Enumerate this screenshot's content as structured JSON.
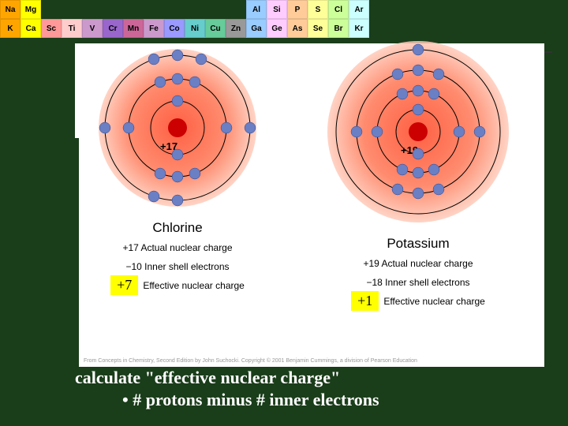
{
  "periodic": {
    "row1": [
      "Na",
      "Mg",
      "",
      "",
      "",
      "",
      "",
      "",
      "",
      "",
      "",
      "",
      "Al",
      "Si",
      "P",
      "S",
      "Cl",
      "Ar"
    ],
    "row2": [
      "K",
      "Ca",
      "Sc",
      "Ti",
      "V",
      "Cr",
      "Mn",
      "Fe",
      "Co",
      "Ni",
      "Cu",
      "Zn",
      "Ga",
      "Ge",
      "As",
      "Se",
      "Br",
      "Kr"
    ],
    "colors": [
      "#ffa500",
      "#ffff00",
      "#ff9999",
      "#ffcccc",
      "#cc99cc",
      "#9966cc",
      "#cc6699",
      "#cc99cc",
      "#9999ff",
      "#66cccc",
      "#66cc99",
      "#999999",
      "#99ccff",
      "#ffccff",
      "#ffcc99",
      "#ffff99",
      "#ccff99",
      "#ccffff"
    ]
  },
  "chlorine": {
    "name": "Chlorine",
    "nucleus_label": "+17",
    "actual": "+17  Actual nuclear charge",
    "inner": "−10  Inner shell electrons",
    "effective": "+7",
    "eff_label": "Effective nuclear charge",
    "shells": [
      {
        "r": 34,
        "electrons": [
          [
            0,
            -34
          ],
          [
            0,
            34
          ]
        ]
      },
      {
        "r": 62,
        "electrons": [
          [
            0,
            -62
          ],
          [
            -22,
            -58
          ],
          [
            22,
            -58
          ],
          [
            -62,
            0
          ],
          [
            62,
            0
          ],
          [
            0,
            62
          ],
          [
            -22,
            58
          ],
          [
            22,
            58
          ]
        ]
      },
      {
        "r": 92,
        "electrons": [
          [
            0,
            -92
          ],
          [
            -30,
            -87
          ],
          [
            30,
            -87
          ],
          [
            -92,
            0
          ],
          [
            92,
            0
          ],
          [
            0,
            92
          ],
          [
            -30,
            87
          ]
        ]
      }
    ]
  },
  "potassium": {
    "name": "Potassium",
    "nucleus_label": "+19",
    "actual": "+19  Actual nuclear charge",
    "inner": "−18  Inner shell electrons",
    "effective": "+1",
    "eff_label": "Effective nuclear charge",
    "shells": [
      {
        "r": 28,
        "electrons": [
          [
            0,
            -28
          ],
          [
            0,
            28
          ]
        ]
      },
      {
        "r": 52,
        "electrons": [
          [
            0,
            -52
          ],
          [
            -20,
            -48
          ],
          [
            20,
            -48
          ],
          [
            -52,
            0
          ],
          [
            52,
            0
          ],
          [
            0,
            52
          ],
          [
            -20,
            48
          ],
          [
            20,
            48
          ]
        ]
      },
      {
        "r": 78,
        "electrons": [
          [
            0,
            -78
          ],
          [
            -26,
            -73
          ],
          [
            26,
            -73
          ],
          [
            -78,
            0
          ],
          [
            78,
            0
          ],
          [
            0,
            78
          ],
          [
            -26,
            73
          ],
          [
            26,
            73
          ]
        ]
      },
      {
        "r": 104,
        "electrons": [
          [
            0,
            -104
          ]
        ]
      }
    ]
  },
  "citation": "From Concepts in Chemistry, Second Edition by John Suchocki. Copyright © 2001 Benjamin Cummings, a division of Pearson Education",
  "bottom": {
    "line1": "calculate \"effective nuclear charge\"",
    "line2": "•   # protons minus # inner electrons"
  },
  "colors": {
    "nucleus": "#cc0000",
    "electron_fill": "#6a7fc4",
    "electron_stroke": "#334488",
    "shell_stroke": "#000",
    "glow_inner": "#ff4422",
    "glow_outer": "#ffccbb"
  }
}
